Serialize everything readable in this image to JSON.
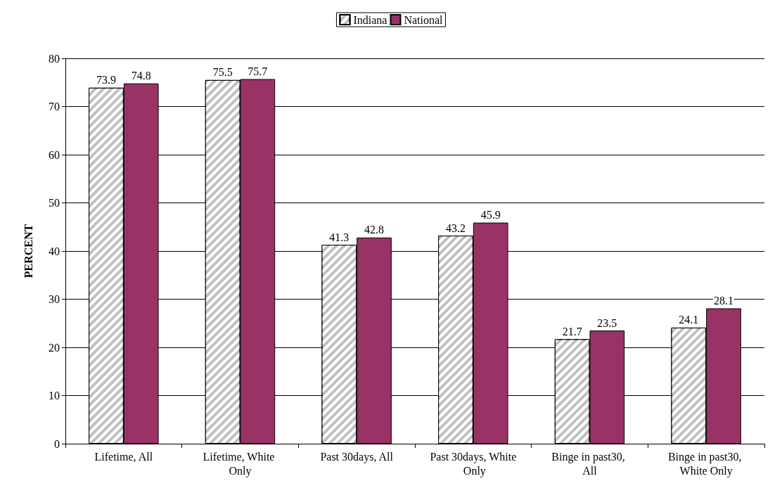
{
  "chart_data": {
    "type": "bar",
    "ylabel": "PERCENT",
    "categories": [
      "Lifetime, All",
      "Lifetime, White Only",
      "Past 30days, All",
      "Past 30days, White Only",
      "Binge in past30, All",
      "Binge in past30, White Only"
    ],
    "series": [
      {
        "name": "Indiana",
        "color": "#c0c0c0",
        "values": [
          73.9,
          75.5,
          41.3,
          43.2,
          21.7,
          24.1
        ]
      },
      {
        "name": "National",
        "color": "#993366",
        "values": [
          74.8,
          75.7,
          42.8,
          45.9,
          23.5,
          28.1
        ]
      }
    ],
    "ylim": [
      0,
      80
    ],
    "yticks": [
      0,
      10,
      20,
      30,
      40,
      50,
      60,
      70,
      80
    ],
    "grid": "y",
    "legend": "top",
    "data_labels": true
  }
}
